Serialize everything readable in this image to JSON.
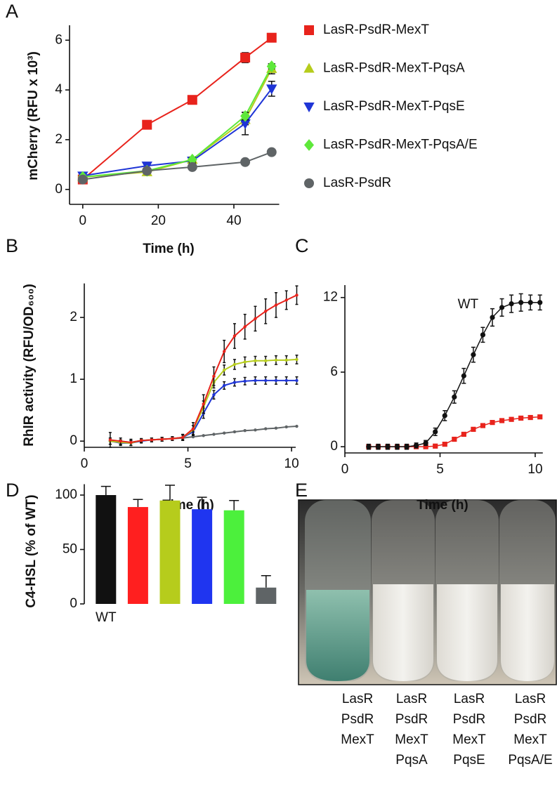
{
  "chart_data": [
    {
      "type": "line",
      "panel": "A",
      "xlabel": "Time (h)",
      "ylabel": "mCherry (RFU x 10³)",
      "xlim": [
        -3.5,
        52
      ],
      "ylim": [
        -0.6,
        6.6
      ],
      "xticks": [
        0,
        20,
        40
      ],
      "yticks": [
        0,
        2,
        4,
        6
      ],
      "legend": "right",
      "x": [
        0,
        17,
        29,
        43,
        50
      ],
      "series": [
        {
          "name": "LasR-PsdR-MexT",
          "color": "#e8231c",
          "marker": "square",
          "values": [
            0.4,
            2.6,
            3.6,
            5.3,
            6.1
          ],
          "errors": [
            0.05,
            0.05,
            0.12,
            0.2,
            0.05
          ]
        },
        {
          "name": "LasR-PsdR-MexT-PqsA",
          "color": "#b6cc1c",
          "marker": "triangle",
          "values": [
            0.5,
            0.7,
            1.2,
            2.8,
            4.85
          ],
          "errors": [
            0.05,
            0.05,
            0.1,
            0.2,
            0.2
          ]
        },
        {
          "name": "LasR-PsdR-MexT-PqsE",
          "color": "#1f35d6",
          "marker": "triangle-down",
          "values": [
            0.55,
            0.95,
            1.15,
            2.65,
            4.05
          ],
          "errors": [
            0.05,
            0.1,
            0.1,
            0.45,
            0.3
          ]
        },
        {
          "name": "LasR-PsdR-MexT-PqsA/E",
          "color": "#5ee83a",
          "marker": "diamond",
          "values": [
            0.5,
            0.75,
            1.2,
            2.95,
            4.95
          ],
          "errors": [
            0.05,
            0.05,
            0.1,
            0.15,
            0.1
          ]
        },
        {
          "name": "LasR-PsdR",
          "color": "#5f6466",
          "marker": "circle",
          "values": [
            0.4,
            0.75,
            0.9,
            1.1,
            1.5
          ],
          "errors": [
            0.05,
            0.05,
            0.05,
            0.05,
            0.05
          ]
        }
      ]
    },
    {
      "type": "line",
      "panel": "B",
      "xlabel": "Time (h)",
      "ylabel": "RhlR activity (RFU/OD₆₀₀)",
      "xlim": [
        0,
        10.2
      ],
      "ylim": [
        -0.1,
        2.55
      ],
      "xticks": [
        0,
        5,
        10
      ],
      "yticks": [
        0,
        1,
        2
      ],
      "x": [
        1.25,
        1.75,
        2.25,
        2.75,
        3.25,
        3.75,
        4.25,
        4.75,
        5.25,
        5.75,
        6.25,
        6.75,
        7.25,
        7.75,
        8.25,
        8.75,
        9.25,
        9.75,
        10.25
      ],
      "series": [
        {
          "color": "#5f6466",
          "marker": "circle",
          "values": [
            0,
            0,
            -0.02,
            0.01,
            0.02,
            0.03,
            0.04,
            0.05,
            0.07,
            0.09,
            0.11,
            0.13,
            0.15,
            0.17,
            0.18,
            0.2,
            0.21,
            0.23,
            0.24
          ]
        },
        {
          "color": "#1f35d6",
          "marker": "circle",
          "values": [
            0,
            -0.03,
            -0.03,
            0,
            0.02,
            0.03,
            0.04,
            0.06,
            0.15,
            0.45,
            0.75,
            0.9,
            0.95,
            0.97,
            0.98,
            0.98,
            0.98,
            0.98,
            0.98
          ],
          "errors": [
            0.05,
            0.04,
            0.04,
            0.03,
            0.03,
            0.03,
            0.03,
            0.04,
            0.06,
            0.08,
            0.07,
            0.06,
            0.06,
            0.06,
            0.06,
            0.06,
            0.06,
            0.06,
            0.06
          ]
        },
        {
          "color": "#b6cc1c",
          "marker": "circle",
          "values": [
            0,
            -0.02,
            -0.03,
            0.01,
            0.02,
            0.03,
            0.04,
            0.06,
            0.18,
            0.55,
            0.95,
            1.15,
            1.24,
            1.28,
            1.3,
            1.3,
            1.31,
            1.31,
            1.32
          ],
          "errors": [
            0.05,
            0.04,
            0.04,
            0.03,
            0.03,
            0.03,
            0.03,
            0.04,
            0.07,
            0.1,
            0.09,
            0.08,
            0.08,
            0.08,
            0.07,
            0.07,
            0.07,
            0.07,
            0.07
          ]
        },
        {
          "color": "#e8231c",
          "marker": "circle",
          "values": [
            0.02,
            0,
            -0.02,
            0.01,
            0.02,
            0.03,
            0.04,
            0.06,
            0.2,
            0.6,
            1.05,
            1.45,
            1.7,
            1.85,
            1.98,
            2.1,
            2.2,
            2.28,
            2.36
          ],
          "errors": [
            0.12,
            0.05,
            0.05,
            0.03,
            0.03,
            0.03,
            0.03,
            0.05,
            0.1,
            0.15,
            0.15,
            0.18,
            0.2,
            0.2,
            0.2,
            0.2,
            0.2,
            0.15,
            0.15
          ]
        }
      ]
    },
    {
      "type": "line",
      "panel": "C",
      "xlabel": "Time (h)",
      "xlim": [
        0,
        10.4
      ],
      "ylim": [
        -0.5,
        13
      ],
      "xticks": [
        0,
        5,
        10
      ],
      "yticks": [
        0,
        6,
        12
      ],
      "legend": "inline",
      "x": [
        1.25,
        1.75,
        2.25,
        2.75,
        3.25,
        3.75,
        4.25,
        4.75,
        5.25,
        5.75,
        6.25,
        6.75,
        7.25,
        7.75,
        8.25,
        8.75,
        9.25,
        9.75,
        10.25
      ],
      "series": [
        {
          "color": "#e8231c",
          "marker": "square",
          "values": [
            0,
            0,
            0,
            0,
            0,
            0,
            0,
            0.05,
            0.2,
            0.6,
            1.0,
            1.4,
            1.7,
            1.95,
            2.1,
            2.2,
            2.3,
            2.35,
            2.4
          ],
          "errors": [
            0.1,
            0.1,
            0.1,
            0.1,
            0.1,
            0.1,
            0.1,
            0.1,
            0.1,
            0.1,
            0.1,
            0.1,
            0.1,
            0.1,
            0.1,
            0.1,
            0.1,
            0.1,
            0.1
          ]
        },
        {
          "name": "WT",
          "color": "#111111",
          "marker": "circle",
          "values": [
            0,
            0,
            0,
            0,
            0,
            0.1,
            0.3,
            1.2,
            2.5,
            4.0,
            5.7,
            7.4,
            9.0,
            10.4,
            11.2,
            11.5,
            11.6,
            11.6,
            11.6
          ],
          "errors": [
            0.2,
            0.2,
            0.2,
            0.2,
            0.2,
            0.2,
            0.2,
            0.3,
            0.4,
            0.5,
            0.6,
            0.6,
            0.6,
            0.7,
            0.7,
            0.7,
            0.7,
            0.6,
            0.6
          ]
        }
      ]
    },
    {
      "type": "bar",
      "panel": "D",
      "ylabel": "C4-HSL (% of WT)",
      "ylim": [
        0,
        110
      ],
      "yticks": [
        0,
        50,
        100
      ],
      "categories": [
        "WT",
        null,
        null,
        null,
        null,
        null
      ],
      "values": [
        100,
        89,
        95,
        87,
        86,
        15
      ],
      "errors": [
        8,
        7,
        14,
        11,
        9,
        11
      ],
      "colors": [
        "#111111",
        "#ff1f1f",
        "#b6cc1c",
        "#1f35f0",
        "#4cf03c",
        "#5f6466"
      ]
    }
  ],
  "photo": {
    "panel": "E",
    "columns": [
      [
        "LasR",
        "PsdR",
        "MexT"
      ],
      [
        "LasR",
        "PsdR",
        "MexT",
        "PqsA"
      ],
      [
        "LasR",
        "PsdR",
        "MexT",
        "PqsE"
      ],
      [
        "LasR",
        "PsdR",
        "MexT",
        "PqsA/E"
      ]
    ]
  }
}
